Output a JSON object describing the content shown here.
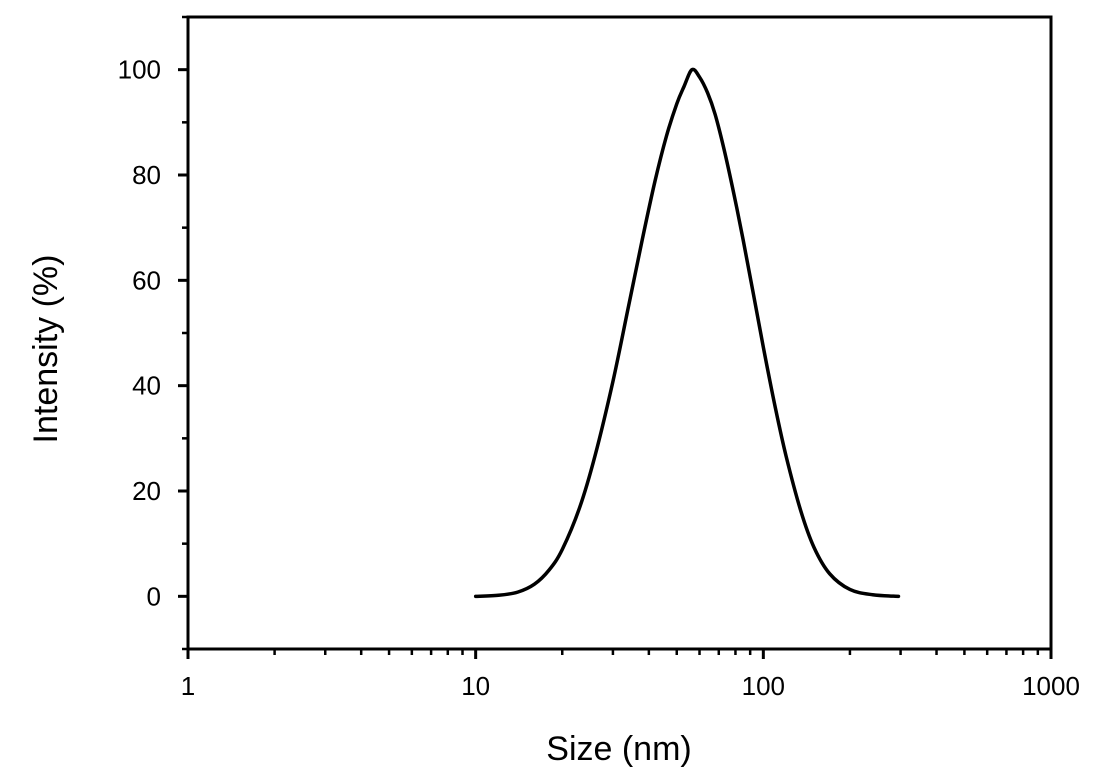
{
  "chart_data": {
    "type": "line",
    "title": "",
    "xlabel": "Size (nm)",
    "ylabel": "Intensity (%)",
    "xscale": "log",
    "xlim": [
      1,
      1000
    ],
    "ylim": [
      -10,
      110
    ],
    "xticks": [
      1,
      10,
      100,
      1000
    ],
    "xtick_labels": [
      "1",
      "10",
      "100",
      "1000"
    ],
    "yticks": [
      0,
      20,
      40,
      60,
      80,
      100
    ],
    "ytick_labels": [
      "0",
      "20",
      "40",
      "60",
      "80",
      "100"
    ],
    "grid": false,
    "legend": "none",
    "line_color": "#000000",
    "series": [
      {
        "x": [
          10,
          12,
          14,
          16,
          18,
          20,
          23,
          26,
          30,
          34,
          38,
          42,
          46,
          50,
          53,
          56.5,
          60,
          64,
          68,
          73,
          79,
          85,
          92,
          100,
          110,
          120,
          135,
          150,
          170,
          200,
          240,
          295
        ],
        "values": [
          0,
          0.2,
          0.8,
          2.3,
          5.0,
          8.9,
          16.9,
          26.7,
          40.8,
          55.1,
          67.9,
          78.8,
          87.3,
          93.5,
          96.8,
          100,
          98.6,
          95.6,
          91.5,
          84.9,
          76.4,
          67.8,
          57.9,
          47.3,
          35.9,
          26.6,
          16.2,
          9.3,
          4.3,
          1.3,
          0.3,
          0
        ]
      }
    ]
  }
}
